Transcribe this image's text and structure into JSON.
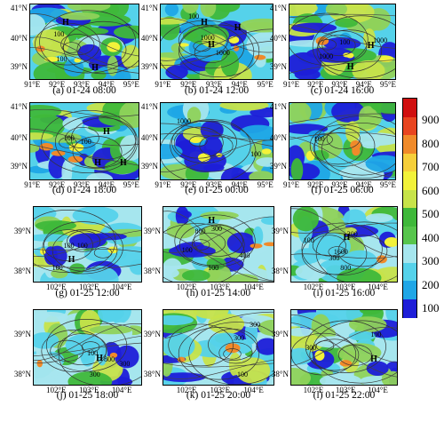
{
  "panels": [
    {
      "id": "a",
      "caption": "(a) 01-24 08:00",
      "region": "top",
      "lat_ticks": [
        "41°N",
        "40°N",
        "39°N"
      ],
      "lon_ticks": [
        "91°E",
        "92°E",
        "93°E",
        "94°E",
        "95°E"
      ],
      "labels": [
        "H",
        "H",
        "100",
        "100"
      ]
    },
    {
      "id": "b",
      "caption": "(b) 01-24 12:00",
      "region": "top",
      "lat_ticks": [
        "41°N",
        "40°N",
        "39°N"
      ],
      "lon_ticks": [
        "91°E",
        "92°E",
        "93°E",
        "94°E",
        "95°E"
      ],
      "labels": [
        "H",
        "H",
        "H",
        "100",
        "1000",
        "1000"
      ]
    },
    {
      "id": "c",
      "caption": "(c) 01-24 16:00",
      "region": "top",
      "lat_ticks": [
        "41°N",
        "40°N",
        "39°N"
      ],
      "lon_ticks": [
        "91°E",
        "92°E",
        "93°E",
        "94°E",
        "95°E"
      ],
      "labels": [
        "H",
        "H",
        "100",
        "1000",
        "1000"
      ]
    },
    {
      "id": "d",
      "caption": "(d) 01-24 18:00",
      "region": "top",
      "lat_ticks": [
        "41°N",
        "40°N",
        "39°N"
      ],
      "lon_ticks": [
        "91°E",
        "92°E",
        "93°E",
        "94°E",
        "95°E"
      ],
      "labels": [
        "H",
        "H",
        "H",
        "100",
        "100"
      ]
    },
    {
      "id": "e",
      "caption": "(e) 01-25 00:00",
      "region": "top",
      "lat_ticks": [
        "41°N",
        "40°N",
        "39°N"
      ],
      "lon_ticks": [
        "91°E",
        "92°E",
        "93°E",
        "94°E",
        "95°E"
      ],
      "labels": [
        "1000",
        "100"
      ]
    },
    {
      "id": "f",
      "caption": "(f) 01-25 06:00",
      "region": "top",
      "lat_ticks": [
        "41°N",
        "40°N",
        "39°N"
      ],
      "lon_ticks": [
        "91°E",
        "92°E",
        "93°E",
        "94°E",
        "95°E"
      ],
      "labels": [
        "100"
      ]
    },
    {
      "id": "g",
      "caption": "(g) 01-25 12:00",
      "region": "bottom",
      "lat_ticks": [
        "39°N",
        "38°N"
      ],
      "lon_ticks": [
        "102°E",
        "103°E",
        "104°E"
      ],
      "labels": [
        "H",
        "100",
        "100",
        "100"
      ]
    },
    {
      "id": "h",
      "caption": "(h) 01-25 14:00",
      "region": "bottom",
      "lat_ticks": [
        "39°N",
        "38°N"
      ],
      "lon_ticks": [
        "102°E",
        "103°E",
        "104°E"
      ],
      "labels": [
        "H",
        "100",
        "800",
        "300",
        "400",
        "100"
      ]
    },
    {
      "id": "i",
      "caption": "(i) 01-25 16:00",
      "region": "bottom",
      "lat_ticks": [
        "39°N",
        "38°N"
      ],
      "lon_ticks": [
        "102°E",
        "103°E",
        "104°E"
      ],
      "labels": [
        "H",
        "300",
        "1600",
        "800",
        "300",
        "100"
      ]
    },
    {
      "id": "j",
      "caption": "(j) 01-25 18:00",
      "region": "bottom",
      "lat_ticks": [
        "39°N",
        "38°N"
      ],
      "lon_ticks": [
        "102°E",
        "103°E",
        "104°E"
      ],
      "labels": [
        "H",
        "800",
        "300",
        "100",
        "300"
      ]
    },
    {
      "id": "k",
      "caption": "(k) 01-25 20:00",
      "region": "bottom",
      "lat_ticks": [
        "39°N",
        "38°N"
      ],
      "lon_ticks": [
        "102°E",
        "103°E",
        "104°E"
      ],
      "labels": [
        "100",
        "300",
        "300"
      ]
    },
    {
      "id": "l",
      "caption": "(l) 01-25 22:00",
      "region": "bottom",
      "lat_ticks": [
        "39°N",
        "38°N"
      ],
      "lon_ticks": [
        "102°E",
        "103°E",
        "104°E"
      ],
      "labels": [
        "100",
        "300",
        "H"
      ]
    }
  ],
  "colorbar": {
    "ticks": [
      "900",
      "800",
      "700",
      "600",
      "500",
      "400",
      "300",
      "200",
      "100"
    ],
    "colors": [
      "#1e1ed8",
      "#1fa6e6",
      "#55d2ea",
      "#a6e6ee",
      "#57c54c",
      "#3fb83a",
      "#c7e34a",
      "#f2f23a",
      "#f6cf3a",
      "#f08a2a",
      "#e84520",
      "#d01010"
    ]
  },
  "fill_colors": {
    "deep_blue": "#1e1ed8",
    "blue": "#1fa6e6",
    "cyan": "#55d2ea",
    "light_cyan": "#a6e6ee",
    "green": "#3fb83a",
    "light_green": "#8fd25a",
    "yellow_green": "#c7e34a",
    "yellow": "#f2f23a",
    "orange": "#f08a2a",
    "red": "#d01010"
  }
}
